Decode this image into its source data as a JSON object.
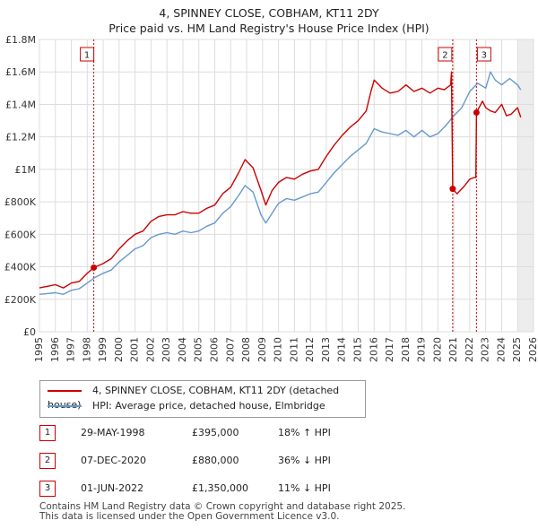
{
  "title_line1": "4, SPINNEY CLOSE, COBHAM, KT11 2DY",
  "title_line2": "Price paid vs. HM Land Registry's House Price Index (HPI)",
  "colors": {
    "price": "#cc0000",
    "hpi": "#6699cc",
    "marker": "#cc0000",
    "future_shade": "#e8e8e8"
  },
  "legend": {
    "price_label": "4, SPINNEY CLOSE, COBHAM, KT11 2DY (detached house)",
    "hpi_label": "HPI: Average price, detached house, Elmbridge"
  },
  "transactions": [
    {
      "num": "1",
      "date": "29-MAY-1998",
      "price": "£395,000",
      "hpi": "18% ↑ HPI"
    },
    {
      "num": "2",
      "date": "07-DEC-2020",
      "price": "£880,000",
      "hpi": "36% ↓ HPI"
    },
    {
      "num": "3",
      "date": "01-JUN-2022",
      "price": "£1,350,000",
      "hpi": "11% ↓ HPI"
    }
  ],
  "footer_line1": "Contains HM Land Registry data © Crown copyright and database right 2025.",
  "footer_line2": "This data is licensed under the Open Government Licence v3.0.",
  "chart_data": {
    "type": "line",
    "title": "4, SPINNEY CLOSE, COBHAM, KT11 2DY — Price paid vs. HM Land Registry's House Price Index (HPI)",
    "xlabel": "",
    "ylabel": "",
    "xlim": [
      1995,
      2026
    ],
    "ylim": [
      0,
      1800000
    ],
    "x_ticks": [
      1995,
      1996,
      1997,
      1998,
      1999,
      2000,
      2001,
      2002,
      2003,
      2004,
      2005,
      2006,
      2007,
      2008,
      2009,
      2010,
      2011,
      2012,
      2013,
      2014,
      2015,
      2016,
      2017,
      2018,
      2019,
      2020,
      2021,
      2022,
      2023,
      2024,
      2025,
      2026
    ],
    "y_ticks": [
      {
        "value": 0,
        "label": "£0"
      },
      {
        "value": 200000,
        "label": "£200K"
      },
      {
        "value": 400000,
        "label": "£400K"
      },
      {
        "value": 600000,
        "label": "£600K"
      },
      {
        "value": 800000,
        "label": "£800K"
      },
      {
        "value": 1000000,
        "label": "£1M"
      },
      {
        "value": 1200000,
        "label": "£1.2M"
      },
      {
        "value": 1400000,
        "label": "£1.4M"
      },
      {
        "value": 1600000,
        "label": "£1.6M"
      },
      {
        "value": 1800000,
        "label": "£1.8M"
      }
    ],
    "grid": true,
    "future_from": 2025.0,
    "series": [
      {
        "name": "4, SPINNEY CLOSE, COBHAM, KT11 2DY (detached house)",
        "x": [
          1995.0,
          1995.5,
          1996.0,
          1996.5,
          1997.0,
          1997.5,
          1998.0,
          1998.41,
          1999.0,
          1999.5,
          2000.0,
          2000.5,
          2001.0,
          2001.5,
          2002.0,
          2002.5,
          2003.0,
          2003.5,
          2004.0,
          2004.5,
          2005.0,
          2005.5,
          2006.0,
          2006.5,
          2007.0,
          2007.5,
          2007.9,
          2008.4,
          2008.9,
          2009.2,
          2009.6,
          2010.0,
          2010.5,
          2011.0,
          2011.5,
          2012.0,
          2012.5,
          2013.0,
          2013.5,
          2014.0,
          2014.5,
          2015.0,
          2015.5,
          2015.8,
          2016.0,
          2016.5,
          2017.0,
          2017.5,
          2018.0,
          2018.5,
          2019.0,
          2019.5,
          2020.0,
          2020.4,
          2020.8,
          2020.85,
          2020.93,
          2021.2,
          2021.6,
          2022.0,
          2022.3,
          2022.38,
          2022.42,
          2022.8,
          2023.0,
          2023.3,
          2023.6,
          2024.0,
          2024.3,
          2024.6,
          2025.0,
          2025.2
        ],
        "y": [
          270000,
          280000,
          290000,
          270000,
          300000,
          310000,
          360000,
          395000,
          420000,
          450000,
          510000,
          560000,
          600000,
          620000,
          680000,
          710000,
          720000,
          720000,
          740000,
          730000,
          730000,
          760000,
          780000,
          850000,
          890000,
          980000,
          1060000,
          1010000,
          870000,
          780000,
          870000,
          920000,
          950000,
          940000,
          970000,
          990000,
          1000000,
          1080000,
          1150000,
          1210000,
          1260000,
          1300000,
          1360000,
          1480000,
          1550000,
          1500000,
          1470000,
          1480000,
          1520000,
          1480000,
          1500000,
          1470000,
          1500000,
          1490000,
          1520000,
          1600000,
          880000,
          850000,
          890000,
          940000,
          950000,
          950000,
          1350000,
          1420000,
          1380000,
          1360000,
          1350000,
          1400000,
          1330000,
          1340000,
          1380000,
          1320000
        ]
      },
      {
        "name": "HPI: Average price, detached house, Elmbridge",
        "x": [
          1995.0,
          1995.5,
          1996.0,
          1996.5,
          1997.0,
          1997.5,
          1998.0,
          1998.5,
          1999.0,
          1999.5,
          2000.0,
          2000.5,
          2001.0,
          2001.5,
          2002.0,
          2002.5,
          2003.0,
          2003.5,
          2004.0,
          2004.5,
          2005.0,
          2005.5,
          2006.0,
          2006.5,
          2007.0,
          2007.5,
          2007.9,
          2008.4,
          2008.9,
          2009.2,
          2009.6,
          2010.0,
          2010.5,
          2011.0,
          2011.5,
          2012.0,
          2012.5,
          2013.0,
          2013.5,
          2014.0,
          2014.5,
          2015.0,
          2015.5,
          2016.0,
          2016.5,
          2017.0,
          2017.5,
          2018.0,
          2018.5,
          2019.0,
          2019.5,
          2020.0,
          2020.5,
          2021.0,
          2021.5,
          2022.0,
          2022.5,
          2023.0,
          2023.3,
          2023.6,
          2024.0,
          2024.5,
          2025.0,
          2025.2
        ],
        "y": [
          230000,
          235000,
          240000,
          230000,
          255000,
          265000,
          300000,
          335000,
          360000,
          380000,
          430000,
          470000,
          510000,
          530000,
          580000,
          600000,
          610000,
          600000,
          620000,
          610000,
          620000,
          650000,
          670000,
          730000,
          770000,
          840000,
          900000,
          860000,
          720000,
          670000,
          730000,
          790000,
          820000,
          810000,
          830000,
          850000,
          860000,
          920000,
          980000,
          1030000,
          1080000,
          1120000,
          1160000,
          1250000,
          1230000,
          1220000,
          1210000,
          1240000,
          1200000,
          1240000,
          1200000,
          1220000,
          1270000,
          1330000,
          1380000,
          1480000,
          1530000,
          1500000,
          1600000,
          1550000,
          1520000,
          1560000,
          1520000,
          1490000
        ]
      }
    ],
    "annotations": [
      {
        "label": "1",
        "x": 1998.41,
        "y": 395000
      },
      {
        "label": "2",
        "x": 2020.93,
        "y": 880000
      },
      {
        "label": "3",
        "x": 2022.42,
        "y": 1350000
      }
    ]
  }
}
